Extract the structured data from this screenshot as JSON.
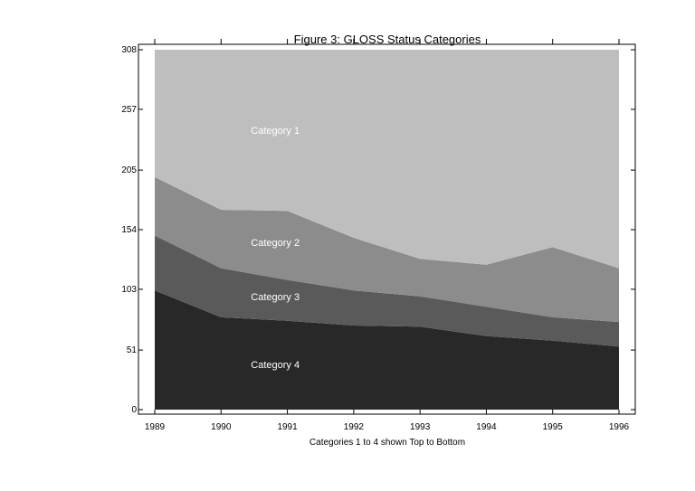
{
  "chart_data": {
    "type": "area",
    "stacking": "stacked",
    "title": "Figure 3: GLOSS Status Categories",
    "xlabel": "Categories 1 to 4 shown Top to Bottom",
    "ylabel": "",
    "x": [
      1989,
      1990,
      1991,
      1992,
      1993,
      1994,
      1995,
      1996
    ],
    "x_tick_labels": [
      "1989",
      "1990",
      "1991",
      "1992",
      "1993",
      "1994",
      "1995",
      "1996"
    ],
    "y_ticks": [
      0,
      51,
      103,
      154,
      205,
      257,
      308
    ],
    "y_tick_labels": [
      "0",
      "51",
      "103",
      "154",
      "205",
      "257",
      "308"
    ],
    "ylim": [
      0,
      308
    ],
    "xlim": [
      1988.8,
      1996.2
    ],
    "grid": false,
    "legend": "none",
    "series": [
      {
        "name": "Category 4",
        "label": "Category 4",
        "color": "#282828",
        "values": [
          102,
          79,
          76,
          72,
          71,
          63,
          59,
          54
        ]
      },
      {
        "name": "Category 3",
        "label": "Category 3",
        "color": "#5a5a5a",
        "values": [
          47,
          42,
          35,
          30,
          26,
          25,
          20,
          21
        ]
      },
      {
        "name": "Category 2",
        "label": "Category 2",
        "color": "#8c8c8c",
        "values": [
          50,
          50,
          59,
          45,
          32,
          36,
          60,
          46
        ]
      },
      {
        "name": "Category 1",
        "label": "Category 1",
        "color": "#bebebe",
        "values": [
          109,
          137,
          138,
          161,
          179,
          184,
          169,
          187
        ]
      }
    ]
  }
}
